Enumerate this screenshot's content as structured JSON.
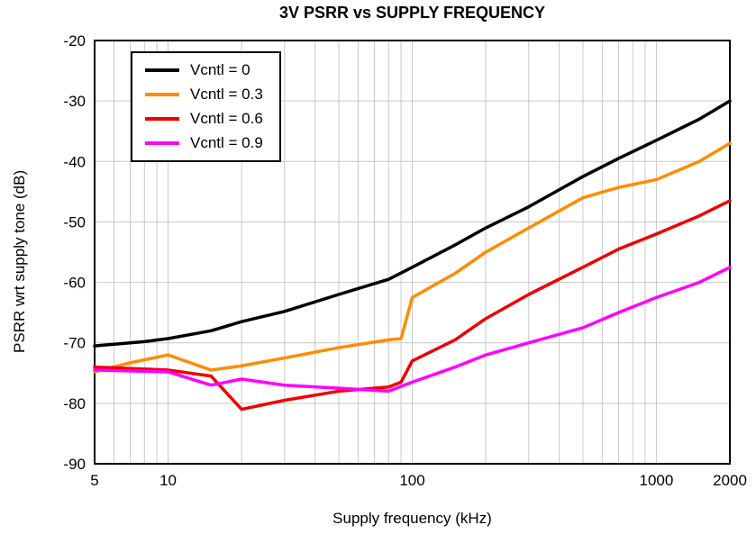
{
  "chart_data": {
    "type": "line",
    "title": "3V PSRR vs SUPPLY FREQUENCY",
    "xlabel": "Supply frequency (kHz)",
    "ylabel": "PSRR wrt supply tone (dB)",
    "x_scale": "log",
    "xlim": [
      5,
      2000
    ],
    "ylim": [
      -90,
      -20
    ],
    "x_ticks": [
      5,
      10,
      100,
      1000,
      2000
    ],
    "y_ticks": [
      -90,
      -80,
      -70,
      -60,
      -50,
      -40,
      -30,
      -20
    ],
    "x_gridlines": [
      6,
      7,
      8,
      9,
      10,
      20,
      30,
      40,
      50,
      60,
      70,
      80,
      90,
      100,
      200,
      300,
      400,
      500,
      600,
      700,
      800,
      900,
      1000
    ],
    "grid": true,
    "legend_position": "top-left",
    "series": [
      {
        "name": "Vcntl = 0",
        "color": "#000000",
        "points": [
          [
            5,
            -70.5
          ],
          [
            8,
            -69.8
          ],
          [
            10,
            -69.3
          ],
          [
            15,
            -68
          ],
          [
            20,
            -66.5
          ],
          [
            30,
            -64.8
          ],
          [
            50,
            -62
          ],
          [
            80,
            -59.5
          ],
          [
            100,
            -57.5
          ],
          [
            150,
            -53.8
          ],
          [
            200,
            -51
          ],
          [
            300,
            -47.5
          ],
          [
            500,
            -42.5
          ],
          [
            700,
            -39.5
          ],
          [
            1000,
            -36.5
          ],
          [
            1500,
            -33
          ],
          [
            2000,
            -30
          ]
        ]
      },
      {
        "name": "Vcntl = 0.3",
        "color": "#FF8C00",
        "points": [
          [
            5,
            -74.8
          ],
          [
            7,
            -73.3
          ],
          [
            10,
            -72
          ],
          [
            15,
            -74.5
          ],
          [
            20,
            -73.8
          ],
          [
            30,
            -72.5
          ],
          [
            50,
            -70.8
          ],
          [
            80,
            -69.5
          ],
          [
            90,
            -69.3
          ],
          [
            100,
            -62.5
          ],
          [
            150,
            -58.5
          ],
          [
            200,
            -55
          ],
          [
            300,
            -51
          ],
          [
            500,
            -46
          ],
          [
            700,
            -44.3
          ],
          [
            1000,
            -43
          ],
          [
            1500,
            -40
          ],
          [
            2000,
            -37
          ]
        ]
      },
      {
        "name": "Vcntl = 0.6",
        "color": "#F00000",
        "points": [
          [
            5,
            -74
          ],
          [
            10,
            -74.5
          ],
          [
            15,
            -75.5
          ],
          [
            20,
            -81
          ],
          [
            30,
            -79.5
          ],
          [
            50,
            -78
          ],
          [
            80,
            -77.3
          ],
          [
            90,
            -76.5
          ],
          [
            100,
            -73
          ],
          [
            150,
            -69.5
          ],
          [
            200,
            -66
          ],
          [
            300,
            -62
          ],
          [
            500,
            -57.5
          ],
          [
            700,
            -54.5
          ],
          [
            1000,
            -52
          ],
          [
            1500,
            -49
          ],
          [
            2000,
            -46.5
          ]
        ]
      },
      {
        "name": "Vcntl = 0.9",
        "color": "#FF00FF",
        "points": [
          [
            5,
            -74.5
          ],
          [
            10,
            -74.8
          ],
          [
            15,
            -77
          ],
          [
            20,
            -76
          ],
          [
            30,
            -77
          ],
          [
            50,
            -77.5
          ],
          [
            80,
            -78
          ],
          [
            100,
            -76.5
          ],
          [
            150,
            -74
          ],
          [
            200,
            -72
          ],
          [
            300,
            -70
          ],
          [
            500,
            -67.5
          ],
          [
            700,
            -65
          ],
          [
            1000,
            -62.5
          ],
          [
            1500,
            -60
          ],
          [
            2000,
            -57.5
          ]
        ]
      }
    ]
  }
}
